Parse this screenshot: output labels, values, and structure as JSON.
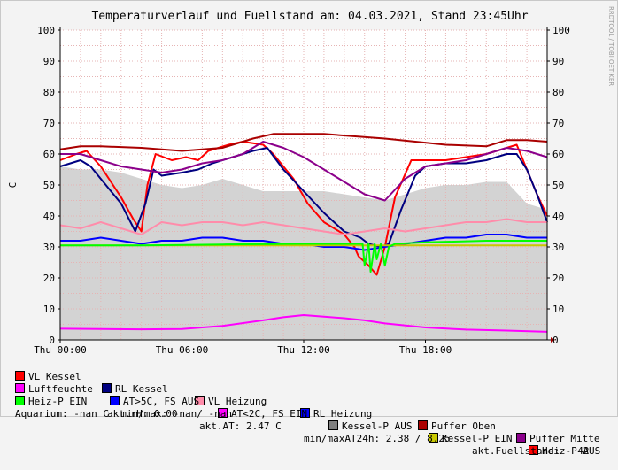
{
  "chart_data": {
    "type": "line",
    "title": "Temperaturverlauf und Fuellstand am: 04.03.2021, Stand 23:45Uhr",
    "ylabel": "C",
    "xlabel": "",
    "ylim": [
      0,
      100
    ],
    "yticks": [
      0,
      10,
      20,
      30,
      40,
      50,
      60,
      70,
      80,
      90,
      100
    ],
    "xlim": [
      0,
      24
    ],
    "xticks": [
      {
        "x": 0,
        "label": "Thu 00:00"
      },
      {
        "x": 6,
        "label": "Thu 06:00"
      },
      {
        "x": 12,
        "label": "Thu 12:00"
      },
      {
        "x": 18,
        "label": "Thu 18:00"
      }
    ],
    "grid": true,
    "area": {
      "name": "Luftfeuchte",
      "color": "#d3d3d3",
      "x": [
        0,
        1,
        2,
        3,
        4,
        5,
        6,
        7,
        8,
        9,
        10,
        11,
        12,
        13,
        14,
        15,
        16,
        17,
        18,
        19,
        20,
        21,
        22,
        23,
        24
      ],
      "y": [
        56,
        55,
        55,
        54,
        52,
        50,
        49,
        50,
        52,
        50,
        48,
        48,
        48,
        48,
        47,
        46,
        45,
        47,
        49,
        50,
        50,
        51,
        51,
        44,
        42
      ]
    },
    "series": [
      {
        "name": "VL Kessel",
        "color": "#ff0000",
        "width": 2,
        "x": [
          0,
          0.8,
          1.3,
          2.0,
          3.0,
          3.6,
          4.0,
          4.3,
          4.7,
          5.5,
          6.2,
          6.8,
          7.3,
          7.8,
          8.3,
          9.0,
          10.0,
          10.5,
          11.5,
          12.2,
          13.0,
          14.0,
          14.5,
          14.7,
          15.2,
          15.6,
          16.0,
          16.5,
          17.3,
          18.0,
          19.0,
          20.0,
          21.0,
          22.0,
          22.5,
          23.0,
          23.5,
          24
        ],
        "y": [
          58,
          60,
          61,
          56,
          46,
          39,
          35,
          50,
          60,
          58,
          59,
          58,
          61,
          62,
          63,
          64,
          63,
          60,
          52,
          44,
          38,
          34,
          30,
          27,
          24,
          21,
          30,
          46,
          58,
          58,
          58,
          59,
          60,
          62,
          63,
          55,
          47,
          40
        ]
      },
      {
        "name": "RL Kessel",
        "color": "#000080",
        "width": 2,
        "x": [
          0,
          0.5,
          1.0,
          1.5,
          2.0,
          3.0,
          3.7,
          4.2,
          4.6,
          5.0,
          6.0,
          6.8,
          7.5,
          8.5,
          9.5,
          10.2,
          11.0,
          12.0,
          13.0,
          14.0,
          14.8,
          15.2,
          15.8,
          16.2,
          16.8,
          17.5,
          18.0,
          19.0,
          20.0,
          21.0,
          22.0,
          22.5,
          23.0,
          23.5,
          24
        ],
        "y": [
          56,
          57,
          58,
          56,
          52,
          44,
          35,
          44,
          55,
          53,
          54,
          55,
          57,
          59,
          61,
          62,
          55,
          48,
          41,
          35,
          33,
          31,
          30,
          31,
          42,
          53,
          56,
          57,
          57,
          58,
          60,
          60,
          55,
          47,
          38
        ]
      },
      {
        "name": "VL Heizung",
        "color": "#ff8caa",
        "width": 2,
        "x": [
          0,
          1,
          2,
          3,
          4,
          5,
          6,
          7,
          8,
          9,
          10,
          11,
          12,
          13,
          14,
          15,
          16,
          17,
          18,
          19,
          20,
          21,
          22,
          23,
          24
        ],
        "y": [
          37,
          36,
          38,
          36,
          34,
          38,
          37,
          38,
          38,
          37,
          38,
          37,
          36,
          35,
          34,
          35,
          36,
          35,
          36,
          37,
          38,
          38,
          39,
          38,
          38
        ]
      },
      {
        "name": "RL Heizung",
        "color": "#0000ff",
        "width": 2,
        "x": [
          0,
          1,
          2,
          3,
          4,
          5,
          6,
          7,
          8,
          9,
          10,
          11,
          12,
          13,
          14,
          15,
          16,
          17,
          18,
          19,
          20,
          21,
          22,
          23,
          24
        ],
        "y": [
          32,
          32,
          33,
          32,
          31,
          32,
          32,
          33,
          33,
          32,
          32,
          31,
          31,
          30,
          30,
          29,
          30,
          31,
          32,
          33,
          33,
          34,
          34,
          33,
          33
        ]
      },
      {
        "name": "Puffer Oben",
        "color": "#aa0000",
        "width": 2,
        "x": [
          0,
          1,
          2,
          4,
          6,
          8,
          9.5,
          10.5,
          13,
          16,
          19,
          21,
          22,
          23,
          24
        ],
        "y": [
          61.5,
          62.5,
          62.5,
          62,
          61,
          62,
          65,
          66.5,
          66.5,
          65,
          63,
          62.5,
          64.5,
          64.5,
          64
        ]
      },
      {
        "name": "Puffer Mitte",
        "color": "#8b008b",
        "width": 2,
        "x": [
          0,
          1,
          2,
          3,
          4,
          5,
          6,
          7,
          8,
          9,
          10,
          11,
          12,
          13,
          14,
          15,
          16,
          17,
          18,
          19,
          20,
          21,
          22,
          23,
          24
        ],
        "y": [
          60,
          60,
          58,
          56,
          55,
          54,
          55,
          57,
          58,
          60,
          64,
          62,
          59,
          55,
          51,
          47,
          45,
          52,
          56,
          57,
          58,
          60,
          62,
          61,
          59
        ]
      },
      {
        "name": "Luftfeuchte",
        "color": "#ff00ff",
        "width": 2,
        "x": [
          0,
          2,
          4,
          6,
          8,
          10,
          11,
          12,
          13,
          14,
          15,
          16,
          18,
          20,
          22,
          24
        ],
        "y": [
          3.6,
          3.5,
          3.4,
          3.5,
          4.5,
          6.3,
          7.3,
          8,
          7.5,
          7,
          6.3,
          5.3,
          4,
          3.3,
          3,
          2.6
        ]
      },
      {
        "name": "Kessel-P EIN",
        "color": "#c8c800",
        "width": 2,
        "x": [
          0,
          6,
          12,
          18,
          24
        ],
        "y": [
          30.5,
          30.5,
          30.5,
          30.5,
          30.5
        ]
      },
      {
        "name": "Heiz-P EIN",
        "color": "#00ff00",
        "width": 2,
        "x": [
          0,
          4,
          8,
          12,
          14,
          14.9,
          15.0,
          15.2,
          15.3,
          15.5,
          15.6,
          15.8,
          16.0,
          16.2,
          16.5,
          18,
          21,
          24
        ],
        "y": [
          30.5,
          30.5,
          30.8,
          31,
          31,
          31,
          24,
          31,
          22,
          31,
          26,
          31,
          24,
          30,
          31,
          31.5,
          32,
          32
        ]
      }
    ]
  },
  "legend": [
    {
      "label": "VL Kessel",
      "color": "#ff0000"
    },
    {
      "label": "RL Kessel",
      "color": "#000080"
    },
    {
      "label": "VL Heizung",
      "color": "#ff8caa"
    },
    {
      "label": "RL Heizung",
      "color": "#0000ff"
    },
    {
      "label": "Puffer Oben",
      "color": "#aa0000"
    },
    {
      "label": "Puffer Mitte",
      "color": "#8b008b"
    },
    {
      "label": "Luftfeuchte",
      "color": "#ff00ff"
    },
    {
      "label": "AT>5C, FS AUS",
      "color": "#0000ff"
    },
    {
      "label": "AT<2C, FS EIN",
      "color": "#ff00ff"
    },
    {
      "label": "Kessel-P AUS",
      "color": "#808080"
    },
    {
      "label": "Kessel-P EIN",
      "color": "#c8c800"
    },
    {
      "label": "Heiz-P AUS",
      "color": "#ff0000"
    },
    {
      "label": "Heiz-P EIN",
      "color": "#00ff00"
    }
  ],
  "stats": {
    "rh": "akt.rH: 0.00",
    "at": "akt.AT: 2.47 C",
    "minmax": "min/maxAT24h: 2.38 / 8.25",
    "fuellstand": "akt.Fuellstand:   42",
    "aquarium": "Aquarium: -nan C  min/max: -nan/ -nan"
  },
  "watermark": "RRDTOOL / TOBI OETIKER"
}
